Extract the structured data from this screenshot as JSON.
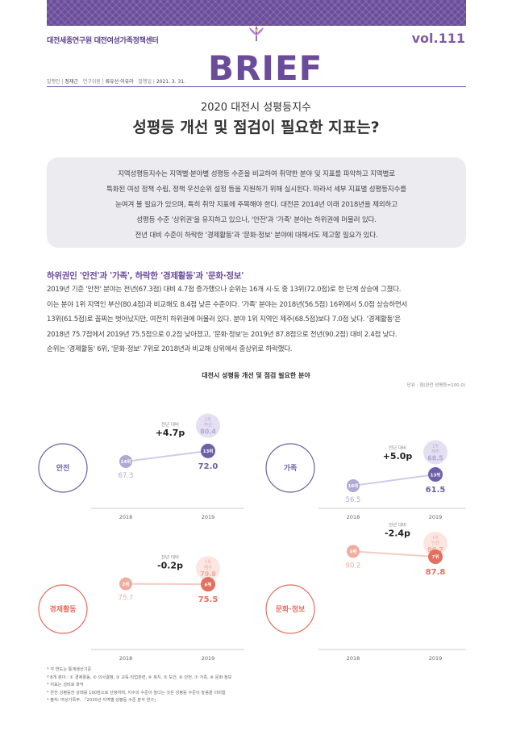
{
  "header": {
    "org": "대전세종연구원 대전여성가족정책센터",
    "vol": "vol.111",
    "logo": "BRIEF",
    "meta": {
      "publisher_label": "발행인",
      "publisher": "정재근",
      "editor_label": "연구위원",
      "editor": "류유선·이유라",
      "date_label": "발행일",
      "date": "2021. 3. 31."
    }
  },
  "title": {
    "line1": "2020 대전시 성평등지수",
    "line2": "성평등 개선 및 점검이 필요한 지표는?"
  },
  "summary": [
    "지역성평등지수는 지역별·분야별 성평등 수준을 비교하여 취약한 분야 및 지표를 파악하고 지역별로",
    "특화된 여성 정책 수립, 정책 우선순위 설정 등을 지원하기 위해 실시된다. 따라서 세부 지표별 성평등지수를",
    "눈여겨 볼 필요가 있으며, 특히 취약 지표에 주목해야 한다. 대전은 2014년 이래 2018년을 제외하고",
    "성평등 수준 '상위권'을 유지하고 있으나, '안전'과 '가족' 분야는 하위권에 머물러 있다.",
    "전년 대비 수준이 하락한 '경제활동'과 '문화·정보' 분야에 대해서도 제고할 필요가 있다."
  ],
  "section": {
    "heading": "하위권인 '안전'과 '가족', 하락한 '경제활동'과 '문화·정보'",
    "paragraph": [
      "2019년 기준 '안전' 분야는 전년(67.3점) 대비 4.7점 증가했으나 순위는 16개 시·도 중 13위(72.0점)로 한 단계 상승에 그쳤다.",
      "이는 분야 1위 지역인 부산(80.4점)과 비교해도 8.4점 낮은 수준이다. '가족' 분야는 2018년(56.5점) 16위에서 5.0점 상승하면서",
      "13위(61.5점)로 꼴찌는 벗어났지만, 여전히 하위권에 머물러 있다. 분야 1위 지역인 제주(68.5점)보다 7.0점 낮다. '경제활동'은",
      "2018년 75.7점에서 2019년 75.5점으로 0.2점 낮아졌고, '문화·정보'는 2019년 87.8점으로 전년(90.2점) 대비 2.4점 낮다.",
      "순위는 '경제활동' 6위, '문화·정보' 7위로 2018년과 비교해 상위에서 중상위로 하락했다."
    ]
  },
  "chart_title": "대전시 성평등 개선 및 점검 필요한 분야",
  "chart_unit": "단위 : 점(완전 성평등=100.0)",
  "chart_data": [
    {
      "type": "line",
      "category": "안전",
      "x": [
        "2018",
        "2019"
      ],
      "values": [
        67.3,
        72.0
      ],
      "ranks": [
        "14위",
        "13위"
      ],
      "change_label": "전년 대비",
      "change": "+4.7p",
      "top_label": "1위",
      "top_region": "부산",
      "top_value": 80.4,
      "color": "#6e60a8",
      "color_prev": "#b2a9d3",
      "line_color": "#cfcae6",
      "top_bg": "#e4e0f1"
    },
    {
      "type": "line",
      "category": "가족",
      "x": [
        "2018",
        "2019"
      ],
      "values": [
        56.5,
        61.5
      ],
      "ranks": [
        "16위",
        "13위"
      ],
      "change_label": "전년 대비",
      "change": "+5.0p",
      "top_label": "1위",
      "top_region": "제주",
      "top_value": 68.5,
      "color": "#6e60a8",
      "color_prev": "#b2a9d3",
      "line_color": "#cfcae6",
      "top_bg": "#e4e0f1"
    },
    {
      "type": "line",
      "category": "경제활동",
      "x": [
        "2018",
        "2019"
      ],
      "values": [
        75.7,
        75.5
      ],
      "ranks": [
        "2위",
        "6위"
      ],
      "change_label": "전년 대비",
      "change": "-0.2p",
      "top_label": "1위",
      "top_region": "제주",
      "top_value": 79.8,
      "color": "#e46f5f",
      "color_prev": "#f0ad9f",
      "line_color": "#f4cbc2",
      "top_bg": "#fbe6e1"
    },
    {
      "type": "line",
      "category": "문화·정보",
      "x": [
        "2018",
        "2019"
      ],
      "values": [
        90.2,
        87.8
      ],
      "ranks": [
        "3위",
        "7위"
      ],
      "change_label": "전년 대비",
      "change": "-2.4p",
      "top_label": "1위",
      "top_region": "인천",
      "top_value": 90.7,
      "color": "#e46f5f",
      "color_prev": "#f0ad9f",
      "line_color": "#f4cbc2",
      "top_bg": "#fbe6e1"
    }
  ],
  "notes": [
    "* 각 연도는 통계생산기준",
    "* 8개 분야 : ① 경제활동, ② 의사결정, ③ 교육·직업훈련, ④ 복지, ⑤ 보건, ⑥ 안전, ⑦ 가족, ⑧ 문화·정보",
    "* 지표는 성비로 파악",
    "* 완전 성평등한 상태를 100점으로 산정하며, 지수의 수준이 높다는 것은 성평등 수준이 높음을 의미함",
    "* 출처: 여성가족부, 「2020년 지역별 성평등 수준 분석 연구」"
  ]
}
